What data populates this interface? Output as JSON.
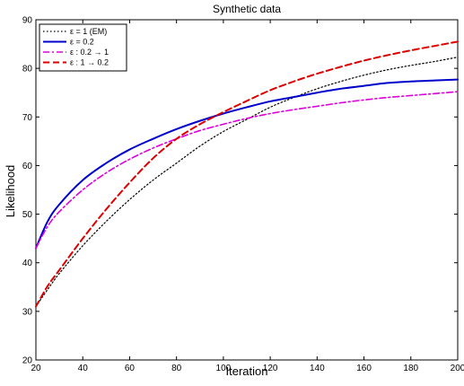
{
  "chart_data": {
    "type": "line",
    "title": "Synthetic data",
    "xlabel": "Iteration",
    "ylabel": "Likelihood",
    "xlim": [
      20,
      200
    ],
    "ylim": [
      20,
      90
    ],
    "xticks": [
      "20",
      "40",
      "60",
      "80",
      "100",
      "120",
      "140",
      "160",
      "180",
      "200"
    ],
    "yticks": [
      "20",
      "30",
      "40",
      "50",
      "60",
      "70",
      "80",
      "90"
    ],
    "grid": false,
    "legend_position": "top-left",
    "x": [
      20,
      25,
      30,
      40,
      50,
      60,
      70,
      80,
      90,
      100,
      110,
      120,
      130,
      140,
      150,
      160,
      170,
      180,
      190,
      200
    ],
    "series": [
      {
        "name": "ε = 1 (EM)",
        "color": "#000000",
        "style": "dotted",
        "values": [
          31.0,
          34.5,
          37.8,
          43.5,
          48.5,
          53.0,
          57.0,
          60.5,
          64.0,
          67.0,
          69.5,
          72.0,
          74.0,
          75.8,
          77.3,
          78.6,
          79.7,
          80.6,
          81.4,
          82.3
        ]
      },
      {
        "name": "ε = 0.2",
        "color": "#0000cc",
        "style": "solid",
        "values": [
          43.0,
          48.5,
          52.0,
          57.0,
          60.5,
          63.3,
          65.5,
          67.5,
          69.2,
          70.7,
          72.0,
          73.2,
          74.1,
          75.0,
          75.8,
          76.4,
          77.0,
          77.3,
          77.5,
          77.7
        ]
      },
      {
        "name": "ε : 0.2 → 1",
        "color": "#dd00dd",
        "style": "dashdot",
        "values": [
          43.0,
          47.5,
          50.5,
          55.0,
          58.5,
          61.3,
          63.6,
          65.5,
          67.2,
          68.5,
          69.7,
          70.7,
          71.5,
          72.2,
          72.9,
          73.5,
          74.0,
          74.4,
          74.8,
          75.2
        ]
      },
      {
        "name": "ε : 1 → 0.2",
        "color": "#dd0000",
        "style": "dashed",
        "values": [
          31.0,
          35.2,
          38.5,
          45.0,
          51.0,
          56.5,
          61.5,
          65.5,
          68.5,
          71.0,
          73.3,
          75.5,
          77.3,
          78.9,
          80.3,
          81.6,
          82.7,
          83.7,
          84.6,
          85.5
        ]
      }
    ]
  }
}
